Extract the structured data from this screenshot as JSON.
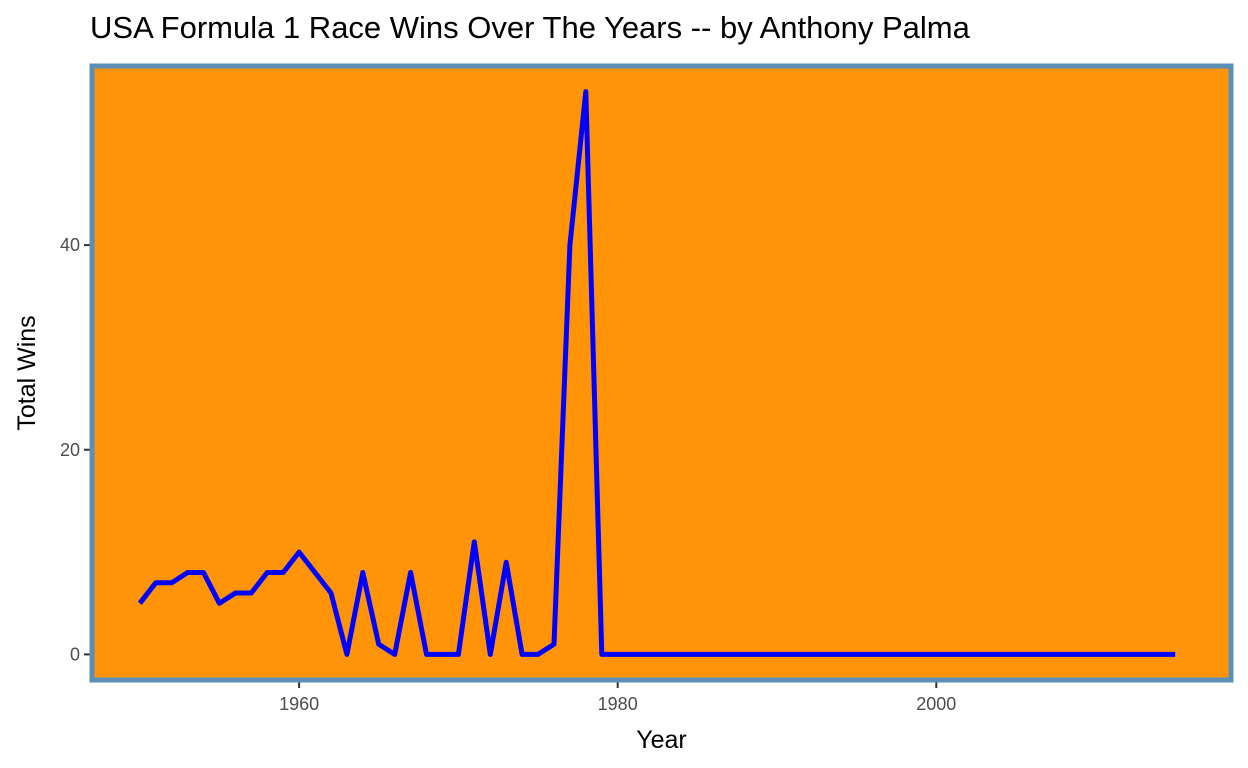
{
  "chart_data": {
    "type": "line",
    "title": "USA Formula 1 Race Wins Over The Years -- by Anthony Palma",
    "xlabel": "Year",
    "ylabel": "Total Wins",
    "xlim": [
      1947,
      2018.5
    ],
    "ylim": [
      -2.5,
      57.5
    ],
    "x_ticks": [
      1960,
      1980,
      2000
    ],
    "y_ticks": [
      0,
      20,
      40
    ],
    "grid": false,
    "panel_background": "#ff9409",
    "panel_border": "#5a8fb8",
    "line_color": "#0000ff",
    "series": [
      {
        "x": [
          1950,
          1951,
          1952,
          1953,
          1954,
          1955,
          1956,
          1957,
          1958,
          1959,
          1960,
          1961,
          1962,
          1963,
          1964,
          1965,
          1966,
          1967,
          1968,
          1969,
          1970,
          1971,
          1972,
          1973,
          1974,
          1975,
          1976,
          1977,
          1978,
          1979,
          1980,
          1985,
          1990,
          1995,
          2000,
          2005,
          2010,
          2015
        ],
        "y": [
          5,
          7,
          7,
          8,
          8,
          5,
          6,
          6,
          8,
          8,
          10,
          8,
          6,
          0,
          8,
          1,
          0,
          8,
          0,
          0,
          0,
          11,
          0,
          9,
          0,
          0,
          1,
          40,
          55,
          0,
          0,
          0,
          0,
          0,
          0,
          0,
          0,
          0
        ]
      }
    ]
  }
}
